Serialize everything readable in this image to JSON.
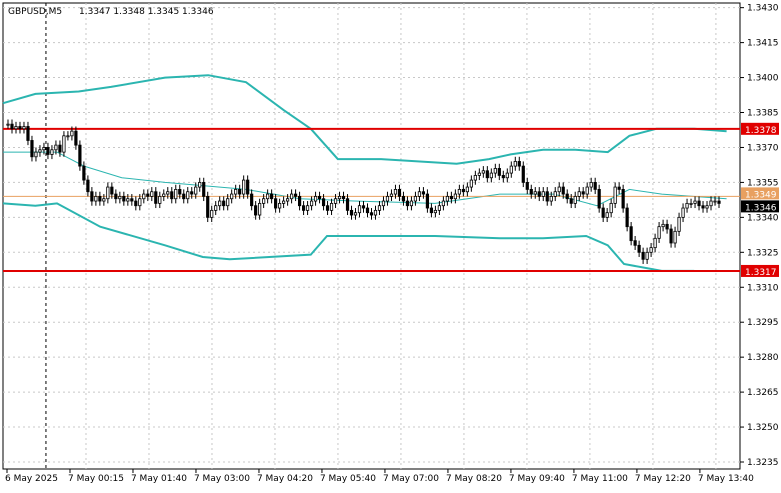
{
  "header": {
    "symbol": "GBPUSD,M5",
    "ohlc": "1.3347 1.3348 1.3345 1.3346"
  },
  "colors": {
    "background": "#ffffff",
    "grid": "#c8c8c8",
    "candle": "#000000",
    "band": "#2bb5b0",
    "level_line": "#e00000",
    "bid_line": "#e8a060",
    "price_tag_bg": "#000000",
    "level_tag_bg": "#e00000"
  },
  "chart_data": {
    "type": "candlestick",
    "timeframe": "M5",
    "y_axis": {
      "min": 1.3232,
      "max": 1.3432,
      "ticks": [
        "1.3430",
        "1.3415",
        "1.3400",
        "1.3385",
        "1.3370",
        "1.3355",
        "1.3340",
        "1.3325",
        "1.3310",
        "1.3295",
        "1.3280",
        "1.3265",
        "1.3250",
        "1.3235"
      ]
    },
    "x_axis": {
      "labels": [
        "6 May 2025",
        "7 May 00:15",
        "7 May 01:40",
        "7 May 03:00",
        "7 May 04:20",
        "7 May 05:40",
        "7 May 07:00",
        "7 May 08:20",
        "7 May 09:40",
        "7 May 11:00",
        "7 May 12:20",
        "7 May 13:40"
      ]
    },
    "horizontal_levels": [
      {
        "value": 1.3378,
        "label": "1.3378"
      },
      {
        "value": 1.3317,
        "label": "1.3317"
      }
    ],
    "price_tags": [
      {
        "value": 1.3349,
        "label": "1.3349",
        "kind": "ask"
      },
      {
        "value": 1.3346,
        "label": "1.3346",
        "kind": "bid"
      }
    ],
    "period_separator_index": 9,
    "closes": [
      1.338,
      1.3378,
      1.3379,
      1.3378,
      1.3379,
      1.3373,
      1.3366,
      1.3368,
      1.3369,
      1.337,
      1.3367,
      1.3369,
      1.3371,
      1.3368,
      1.3375,
      1.3375,
      1.3377,
      1.3371,
      1.3362,
      1.3356,
      1.3351,
      1.3347,
      1.3349,
      1.3347,
      1.3348,
      1.3353,
      1.335,
      1.3348,
      1.3349,
      1.3347,
      1.3348,
      1.3347,
      1.3345,
      1.3348,
      1.335,
      1.3349,
      1.3351,
      1.3346,
      1.3349,
      1.335,
      1.3351,
      1.3348,
      1.3352,
      1.335,
      1.3348,
      1.3351,
      1.335,
      1.3353,
      1.3355,
      1.3349,
      1.334,
      1.3343,
      1.3345,
      1.3347,
      1.3345,
      1.3348,
      1.335,
      1.3352,
      1.335,
      1.3356,
      1.335,
      1.3345,
      1.3341,
      1.3346,
      1.3348,
      1.335,
      1.3348,
      1.3344,
      1.3346,
      1.3347,
      1.3348,
      1.335,
      1.3349,
      1.3345,
      1.3343,
      1.3345,
      1.3347,
      1.3349,
      1.3348,
      1.3345,
      1.3343,
      1.3346,
      1.3348,
      1.3349,
      1.3348,
      1.3343,
      1.3341,
      1.3342,
      1.3345,
      1.3344,
      1.3342,
      1.3341,
      1.3343,
      1.3345,
      1.3347,
      1.3349,
      1.335,
      1.3352,
      1.3349,
      1.3347,
      1.3345,
      1.3347,
      1.3349,
      1.3351,
      1.335,
      1.3344,
      1.3342,
      1.3343,
      1.3345,
      1.3347,
      1.3349,
      1.3348,
      1.335,
      1.3352,
      1.3351,
      1.3353,
      1.3356,
      1.3358,
      1.3359,
      1.336,
      1.3357,
      1.3359,
      1.3361,
      1.3358,
      1.3357,
      1.3359,
      1.3362,
      1.3364,
      1.3362,
      1.3355,
      1.3352,
      1.335,
      1.3351,
      1.3349,
      1.3351,
      1.3347,
      1.3349,
      1.3351,
      1.3353,
      1.335,
      1.3348,
      1.3346,
      1.3349,
      1.3351,
      1.335,
      1.3353,
      1.3355,
      1.3352,
      1.3344,
      1.334,
      1.3342,
      1.3346,
      1.3353,
      1.3352,
      1.3344,
      1.3336,
      1.333,
      1.3328,
      1.3325,
      1.3322,
      1.3325,
      1.3327,
      1.3331,
      1.3336,
      1.3337,
      1.3335,
      1.3329,
      1.3334,
      1.334,
      1.3344,
      1.3346,
      1.3346,
      1.3347,
      1.3345,
      1.3344,
      1.3345,
      1.3347,
      1.3347,
      1.3346
    ],
    "series": [
      {
        "name": "upper",
        "points": [
          [
            0,
            1.3389
          ],
          [
            0.06,
            1.3393
          ],
          [
            0.14,
            1.3394
          ],
          [
            0.2,
            1.3396
          ],
          [
            0.3,
            1.34
          ],
          [
            0.38,
            1.3401
          ],
          [
            0.45,
            1.3398
          ],
          [
            0.52,
            1.3386
          ],
          [
            0.57,
            1.3378
          ],
          [
            0.62,
            1.3365
          ],
          [
            0.7,
            1.3365
          ],
          [
            0.84,
            1.3363
          ],
          [
            0.9,
            1.3365
          ],
          [
            0.94,
            1.3367
          ],
          [
            1.0,
            1.3369
          ],
          [
            1.06,
            1.3369
          ],
          [
            1.12,
            1.3368
          ],
          [
            1.16,
            1.3375
          ],
          [
            1.21,
            1.3378
          ],
          [
            1.28,
            1.3378
          ],
          [
            1.34,
            1.3377
          ]
        ]
      },
      {
        "name": "middle",
        "points": [
          [
            0,
            1.3368
          ],
          [
            0.1,
            1.3368
          ],
          [
            0.15,
            1.3362
          ],
          [
            0.22,
            1.3357
          ],
          [
            0.3,
            1.3355
          ],
          [
            0.45,
            1.3352
          ],
          [
            0.55,
            1.3348
          ],
          [
            0.65,
            1.3347
          ],
          [
            0.8,
            1.3346
          ],
          [
            0.92,
            1.335
          ],
          [
            1.02,
            1.335
          ],
          [
            1.1,
            1.3345
          ],
          [
            1.16,
            1.3352
          ],
          [
            1.22,
            1.335
          ],
          [
            1.34,
            1.3348
          ]
        ]
      },
      {
        "name": "lower",
        "points": [
          [
            0,
            1.3346
          ],
          [
            0.06,
            1.3345
          ],
          [
            0.1,
            1.3346
          ],
          [
            0.18,
            1.3336
          ],
          [
            0.3,
            1.3328
          ],
          [
            0.37,
            1.3323
          ],
          [
            0.42,
            1.3322
          ],
          [
            0.57,
            1.3324
          ],
          [
            0.6,
            1.3332
          ],
          [
            0.7,
            1.3332
          ],
          [
            0.8,
            1.3332
          ],
          [
            0.92,
            1.3331
          ],
          [
            1.0,
            1.3331
          ],
          [
            1.08,
            1.3332
          ],
          [
            1.12,
            1.3328
          ],
          [
            1.15,
            1.332
          ],
          [
            1.22,
            1.3317
          ],
          [
            1.28,
            1.3317
          ]
        ]
      }
    ]
  }
}
